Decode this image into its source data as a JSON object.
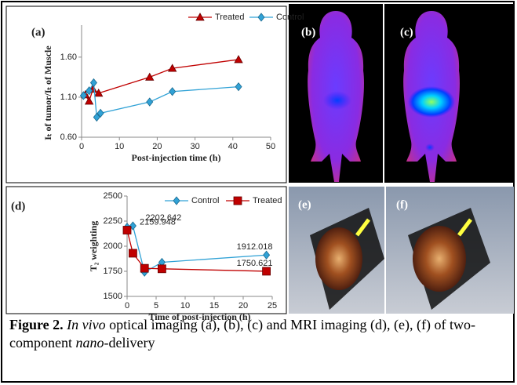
{
  "chart_data": [
    {
      "type": "line",
      "panel": "(a)",
      "ylabel": "Iₜ of tumor/Iₜ of Muscle",
      "xlabel": "Post-injection time (h)",
      "xlim": [
        0,
        50
      ],
      "xticks": [
        0,
        10,
        20,
        30,
        40,
        50
      ],
      "ylim": [
        0.6,
        2.0
      ],
      "yticks": [
        {
          "value": 0.6,
          "label": "0.60"
        },
        {
          "value": 1.1,
          "label": "1.10"
        },
        {
          "value": 1.6,
          "label": "1.60"
        }
      ],
      "series": [
        {
          "name": "Treated",
          "color": "#c00000",
          "marker": "triangle",
          "x": [
            1,
            2,
            3,
            4.5,
            18,
            24,
            41.5
          ],
          "values": [
            1.13,
            1.05,
            1.2,
            1.15,
            1.35,
            1.46,
            1.57
          ]
        },
        {
          "name": "Control",
          "color": "#31a2d6",
          "marker": "diamond",
          "x": [
            0.5,
            2,
            3.2,
            4,
            5,
            18,
            24,
            41.5
          ],
          "values": [
            1.12,
            1.18,
            1.28,
            0.85,
            0.9,
            1.04,
            1.17,
            1.23
          ]
        }
      ]
    },
    {
      "type": "line",
      "panel": "(d)",
      "ylabel": "T₂ weighting",
      "xlabel": "Time of post-injection (h)",
      "xlim": [
        0,
        25
      ],
      "xticks": [
        0,
        5,
        10,
        15,
        20,
        25
      ],
      "ylim": [
        1500,
        2500
      ],
      "yticks": [
        1500,
        1750,
        2000,
        2250,
        2500
      ],
      "series": [
        {
          "name": "Control",
          "color": "#31a2d6",
          "marker": "diamond",
          "x": [
            0,
            1,
            3,
            6,
            24
          ],
          "values": [
            2190,
            2202.642,
            1740,
            1840,
            1912.018
          ],
          "value_labels": [
            null,
            "2202.642",
            null,
            null,
            "1912.018"
          ]
        },
        {
          "name": "Treated",
          "color": "#c00000",
          "marker": "square",
          "x": [
            0,
            1,
            3,
            6,
            24
          ],
          "values": [
            2159.948,
            1930,
            1780,
            1775,
            1750.621
          ],
          "value_labels": [
            "2159.948",
            null,
            null,
            null,
            "1750.621"
          ]
        }
      ]
    }
  ],
  "images": [
    "(b)",
    "(c)",
    "(e)",
    "(f)"
  ],
  "caption": {
    "label": "Figure 2.",
    "italic1": "In vivo",
    "text1": " optical imaging (a), (b), (c) and MRI imaging (d), (e), (f) of two-component ",
    "italic2": "nano",
    "text2": "-delivery"
  }
}
